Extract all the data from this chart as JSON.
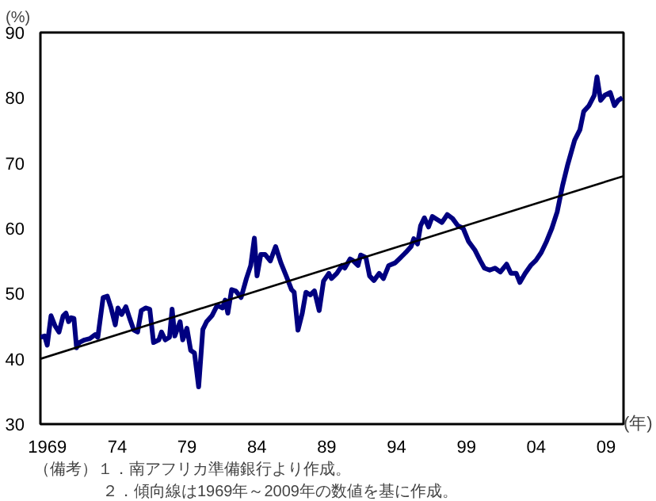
{
  "chart_data": {
    "type": "line",
    "ylabel": "(%)",
    "xlabel": "(年)",
    "xlim": [
      1968.5,
      2010.25
    ],
    "ylim": [
      30,
      90
    ],
    "xticks": [
      1969,
      {
        "value": 1974,
        "label": "74"
      },
      {
        "value": 1979,
        "label": "79"
      },
      {
        "value": 1984,
        "label": "84"
      },
      {
        "value": 1989,
        "label": "89"
      },
      {
        "value": 1994,
        "label": "94"
      },
      {
        "value": 1999,
        "label": "99"
      },
      {
        "value": 2004,
        "label": "04"
      },
      {
        "value": 2009,
        "label": "09"
      }
    ],
    "yticks": [
      30,
      40,
      50,
      60,
      70,
      80,
      90
    ],
    "annotations": [
      "（備考）１．南アフリカ準備銀行より作成。",
      "２．傾向線は1969年～2009年の数値を基に作成。"
    ],
    "series": [
      {
        "color": "#000080",
        "x": [
          1968.5,
          1968.8,
          1968.99,
          1969.26,
          1969.56,
          1969.83,
          1970.13,
          1970.33,
          1970.52,
          1970.71,
          1970.9,
          1971.09,
          1971.28,
          1971.66,
          1972.04,
          1972.42,
          1972.61,
          1972.99,
          1973.29,
          1973.56,
          1973.86,
          1974.05,
          1974.32,
          1974.62,
          1974.89,
          1975.19,
          1975.46,
          1975.72,
          1976.03,
          1976.33,
          1976.6,
          1976.98,
          1977.17,
          1977.44,
          1977.74,
          1977.93,
          1978.12,
          1978.5,
          1978.69,
          1978.99,
          1979.26,
          1979.53,
          1979.83,
          1980.13,
          1980.4,
          1980.78,
          1981.16,
          1981.54,
          1981.73,
          1981.92,
          1982.19,
          1982.49,
          1982.87,
          1983.25,
          1983.56,
          1983.82,
          1984.01,
          1984.28,
          1984.58,
          1984.96,
          1985.34,
          1985.72,
          1986.1,
          1986.48,
          1986.67,
          1986.94,
          1987.25,
          1987.51,
          1987.82,
          1988.12,
          1988.46,
          1988.77,
          1989.15,
          1989.34,
          1989.72,
          1990.1,
          1990.29,
          1990.67,
          1990.86,
          1991.24,
          1991.43,
          1991.81,
          1992.07,
          1992.38,
          1992.76,
          1993.06,
          1993.44,
          1993.9,
          1994.28,
          1994.66,
          1995.04,
          1995.23,
          1995.5,
          1995.72,
          1995.99,
          1996.29,
          1996.56,
          1996.94,
          1997.25,
          1997.63,
          1998.01,
          1998.39,
          1998.77,
          1999.15,
          1999.6,
          1999.98,
          2000.29,
          2000.67,
          2001.05,
          2001.43,
          2001.88,
          2002.19,
          2002.57,
          2002.83,
          2003.21,
          2003.6,
          2003.98,
          2004.36,
          2004.74,
          2005.12,
          2005.5,
          2005.88,
          2006.26,
          2006.75,
          2007.13,
          2007.4,
          2007.78,
          2008.16,
          2008.35,
          2008.61,
          2008.92,
          2009.3,
          2009.6,
          2009.87,
          2010.17
        ],
        "values": [
          43.3,
          43.5,
          42.1,
          46.6,
          45.0,
          44.1,
          46.6,
          47.0,
          45.7,
          46.3,
          46.2,
          41.7,
          42.5,
          42.9,
          43.1,
          43.7,
          43.3,
          49.4,
          49.6,
          47.8,
          45.2,
          47.8,
          46.8,
          48.0,
          46.2,
          44.4,
          44.1,
          47.4,
          47.8,
          47.6,
          42.5,
          42.9,
          44.1,
          42.9,
          43.3,
          47.6,
          43.5,
          45.7,
          42.9,
          44.7,
          41.3,
          40.9,
          35.7,
          44.5,
          45.7,
          46.6,
          48.2,
          47.8,
          49.0,
          47.0,
          50.6,
          50.4,
          49.4,
          52.3,
          54.3,
          58.5,
          52.7,
          56.0,
          56.0,
          55.0,
          57.2,
          54.7,
          52.7,
          50.6,
          50.2,
          44.4,
          47.0,
          50.2,
          49.8,
          50.4,
          47.4,
          51.9,
          53.1,
          52.3,
          53.1,
          54.3,
          53.9,
          55.3,
          55.1,
          54.3,
          55.9,
          55.5,
          52.7,
          52.0,
          53.1,
          52.3,
          54.3,
          54.7,
          55.5,
          56.3,
          57.2,
          58.4,
          57.6,
          60.4,
          61.6,
          60.2,
          61.8,
          61.3,
          60.9,
          62.1,
          61.5,
          60.4,
          60.0,
          58.0,
          56.7,
          55.1,
          53.9,
          53.6,
          53.9,
          53.3,
          54.5,
          53.1,
          53.1,
          51.7,
          53.1,
          54.3,
          55.1,
          56.3,
          58.0,
          60.0,
          62.5,
          66.5,
          69.8,
          73.5,
          75.1,
          77.9,
          78.8,
          80.4,
          83.2,
          79.6,
          80.4,
          80.8,
          78.8,
          79.6,
          80.0
        ]
      },
      {
        "color": "#000000",
        "x": [
          1968.5,
          2010.25
        ],
        "values": [
          40,
          68
        ]
      }
    ]
  }
}
